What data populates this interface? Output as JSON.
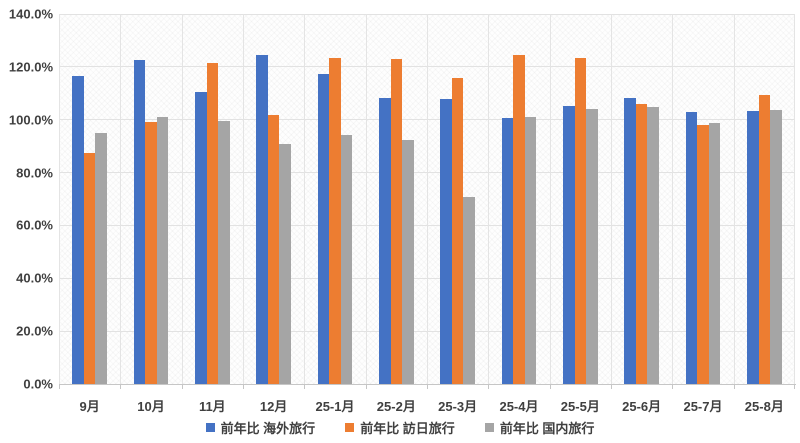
{
  "chart_data": {
    "type": "bar",
    "title": "",
    "categories": [
      "9月",
      "10月",
      "11月",
      "12月",
      "25-1月",
      "25-2月",
      "25-3月",
      "25-4月",
      "25-5月",
      "25-6月",
      "25-7月",
      "25-8月"
    ],
    "series": [
      {
        "name": "前年比 海外旅行",
        "color": "#4472C4",
        "values": [
          116.5,
          122.5,
          110.6,
          124.3,
          117.3,
          108.3,
          107.8,
          100.5,
          105.1,
          108.3,
          103.0,
          103.4
        ]
      },
      {
        "name": "前年比 訪日旅行",
        "color": "#ED7D31",
        "values": [
          87.4,
          99.3,
          121.5,
          101.8,
          123.4,
          122.8,
          115.8,
          124.3,
          123.4,
          105.8,
          97.9,
          109.2
        ]
      },
      {
        "name": "前年比 国内旅行",
        "color": "#A5A5A5",
        "values": [
          95.0,
          100.9,
          99.5,
          91.0,
          94.4,
          92.5,
          70.6,
          100.9,
          104.2,
          104.7,
          98.8,
          103.5
        ]
      }
    ],
    "xlabel": "",
    "ylabel": "",
    "ylim": [
      0,
      140
    ],
    "ytick_step": 20,
    "ytick_labels": [
      "0.0%",
      "20.0%",
      "40.0%",
      "60.0%",
      "80.0%",
      "100.0%",
      "120.0%",
      "140.0%"
    ],
    "grid": "horizontal-major and vertical category boundaries",
    "legend_position": "bottom-center"
  },
  "style_colors": {
    "axis_label_text": "#404040",
    "gridline": "#e2e2e2",
    "axis_line": "#c6c6c6",
    "background": "#ffffff"
  }
}
